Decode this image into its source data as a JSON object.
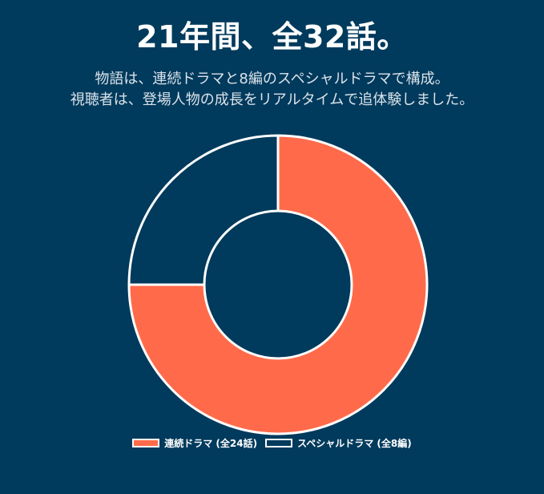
{
  "header": {
    "title": "21年間、全32話。",
    "subtitle_line1": "物語は、連続ドラマと8編のスペシャルドラマで構成。",
    "subtitle_line2": "視聴者は、登場人物の成長をリアルタイムで追体験しました。"
  },
  "chart_data": {
    "type": "pie",
    "variant": "doughnut",
    "title": "21年間、全32話。",
    "categories": [
      "連続ドラマ (全24話)",
      "スペシャルドラマ (全8編)"
    ],
    "values": [
      24,
      8
    ],
    "colors": [
      "#ff6b4a",
      "#003a5c"
    ],
    "border_color": "#ffffff",
    "legend_position": "bottom"
  }
}
